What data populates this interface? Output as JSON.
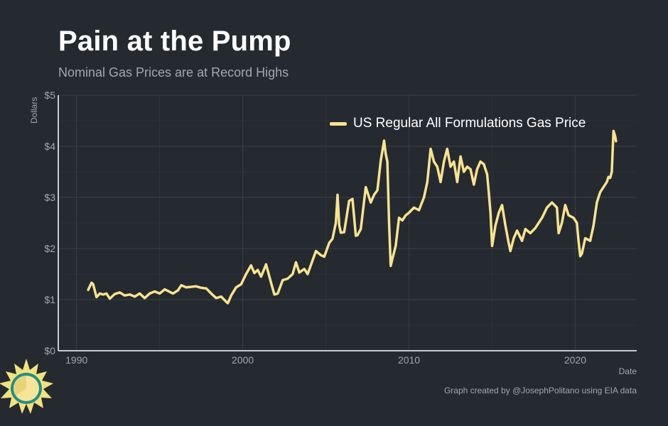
{
  "title": "Pain at the Pump",
  "subtitle": "Nominal Gas Prices are at Record Highs",
  "caption": "Graph created by @JosephPolitano using EIA data",
  "colors": {
    "background": "#252930",
    "line": "#f8e38e",
    "grid": "#3a3f47",
    "axis": "#ffffff",
    "text_muted": "#a4a8ad"
  },
  "logo": {
    "icon": "sun-logo-icon"
  },
  "chart_data": {
    "type": "line",
    "title": "Pain at the Pump",
    "subtitle": "Nominal Gas Prices are at Record Highs",
    "xlabel": "Date",
    "ylabel": "Dollars",
    "xlim": [
      1988.9,
      2023.7
    ],
    "ylim": [
      0,
      5
    ],
    "x_ticks": [
      1990,
      2000,
      2010,
      2020
    ],
    "x_tick_labels": [
      "1990",
      "2000",
      "2010",
      "2020"
    ],
    "y_ticks": [
      0,
      1,
      2,
      3,
      4,
      5
    ],
    "y_tick_labels": [
      "$0",
      "$1",
      "$2",
      "$3",
      "$4",
      "$5"
    ],
    "grid": true,
    "legend_position": "top-right",
    "series": [
      {
        "name": "US Regular All Formulations Gas Price",
        "color": "#f8e38e",
        "x": [
          1990.7,
          1990.9,
          1991.0,
          1991.2,
          1991.4,
          1991.6,
          1991.8,
          1992.0,
          1992.3,
          1992.6,
          1992.9,
          1993.2,
          1993.5,
          1993.8,
          1994.1,
          1994.4,
          1994.7,
          1995.0,
          1995.3,
          1995.5,
          1995.8,
          1996.1,
          1996.3,
          1996.6,
          1996.9,
          1997.2,
          1997.5,
          1997.8,
          1998.1,
          1998.4,
          1998.7,
          1999.0,
          1999.1,
          1999.3,
          1999.6,
          1999.9,
          2000.2,
          2000.5,
          2000.7,
          2000.9,
          2001.1,
          2001.4,
          2001.7,
          2001.9,
          2002.1,
          2002.4,
          2002.7,
          2003.0,
          2003.2,
          2003.4,
          2003.7,
          2003.9,
          2004.2,
          2004.4,
          2004.7,
          2004.9,
          2005.2,
          2005.4,
          2005.6,
          2005.7,
          2005.8,
          2005.9,
          2006.1,
          2006.4,
          2006.6,
          2006.8,
          2006.9,
          2007.1,
          2007.4,
          2007.5,
          2007.7,
          2007.9,
          2008.1,
          2008.3,
          2008.5,
          2008.6,
          2008.7,
          2008.8,
          2008.9,
          2009.0,
          2009.2,
          2009.4,
          2009.6,
          2009.8,
          2010.0,
          2010.3,
          2010.6,
          2010.9,
          2011.1,
          2011.3,
          2011.5,
          2011.7,
          2011.9,
          2012.1,
          2012.3,
          2012.5,
          2012.7,
          2012.9,
          2013.1,
          2013.3,
          2013.5,
          2013.7,
          2013.9,
          2014.1,
          2014.3,
          2014.5,
          2014.7,
          2014.8,
          2014.9,
          2015.0,
          2015.2,
          2015.4,
          2015.6,
          2015.8,
          2016.0,
          2016.1,
          2016.3,
          2016.5,
          2016.8,
          2017.0,
          2017.3,
          2017.6,
          2017.8,
          2018.0,
          2018.3,
          2018.6,
          2018.9,
          2019.0,
          2019.2,
          2019.4,
          2019.6,
          2019.9,
          2020.1,
          2020.2,
          2020.3,
          2020.4,
          2020.6,
          2020.9,
          2021.1,
          2021.3,
          2021.5,
          2021.7,
          2021.9,
          2022.0,
          2022.1,
          2022.2,
          2022.3,
          2022.4,
          2022.45
        ],
        "y": [
          1.19,
          1.33,
          1.3,
          1.05,
          1.12,
          1.1,
          1.12,
          1.02,
          1.11,
          1.14,
          1.08,
          1.1,
          1.06,
          1.12,
          1.03,
          1.12,
          1.16,
          1.12,
          1.2,
          1.17,
          1.12,
          1.18,
          1.28,
          1.24,
          1.25,
          1.26,
          1.23,
          1.22,
          1.12,
          1.03,
          1.06,
          0.96,
          0.93,
          1.08,
          1.24,
          1.3,
          1.5,
          1.67,
          1.52,
          1.58,
          1.45,
          1.69,
          1.33,
          1.1,
          1.12,
          1.38,
          1.41,
          1.5,
          1.73,
          1.53,
          1.6,
          1.5,
          1.77,
          1.95,
          1.87,
          1.84,
          2.11,
          2.19,
          2.5,
          3.05,
          2.46,
          2.31,
          2.32,
          2.93,
          2.97,
          2.25,
          2.26,
          2.38,
          3.2,
          3.1,
          2.9,
          3.05,
          3.14,
          3.72,
          4.11,
          3.85,
          3.7,
          2.5,
          1.66,
          1.8,
          2.05,
          2.6,
          2.55,
          2.65,
          2.7,
          2.8,
          2.75,
          3.0,
          3.3,
          3.95,
          3.7,
          3.6,
          3.3,
          3.7,
          3.95,
          3.6,
          3.7,
          3.3,
          3.8,
          3.5,
          3.6,
          3.55,
          3.25,
          3.55,
          3.7,
          3.65,
          3.45,
          3.1,
          2.7,
          2.05,
          2.45,
          2.7,
          2.85,
          2.45,
          2.1,
          1.95,
          2.2,
          2.35,
          2.15,
          2.38,
          2.3,
          2.4,
          2.5,
          2.6,
          2.8,
          2.9,
          2.8,
          2.3,
          2.5,
          2.85,
          2.65,
          2.6,
          2.5,
          2.15,
          1.85,
          1.9,
          2.2,
          2.15,
          2.45,
          2.9,
          3.1,
          3.2,
          3.3,
          3.4,
          3.38,
          3.5,
          4.3,
          4.2,
          4.1
        ]
      }
    ]
  }
}
